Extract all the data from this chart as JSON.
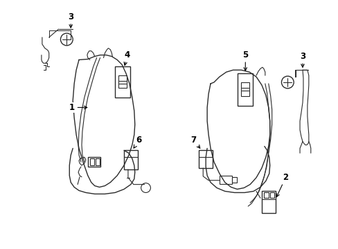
{
  "background_color": "#ffffff",
  "line_color": "#2a2a2a",
  "label_color": "#000000",
  "fig_width": 4.89,
  "fig_height": 3.6,
  "dpi": 100
}
